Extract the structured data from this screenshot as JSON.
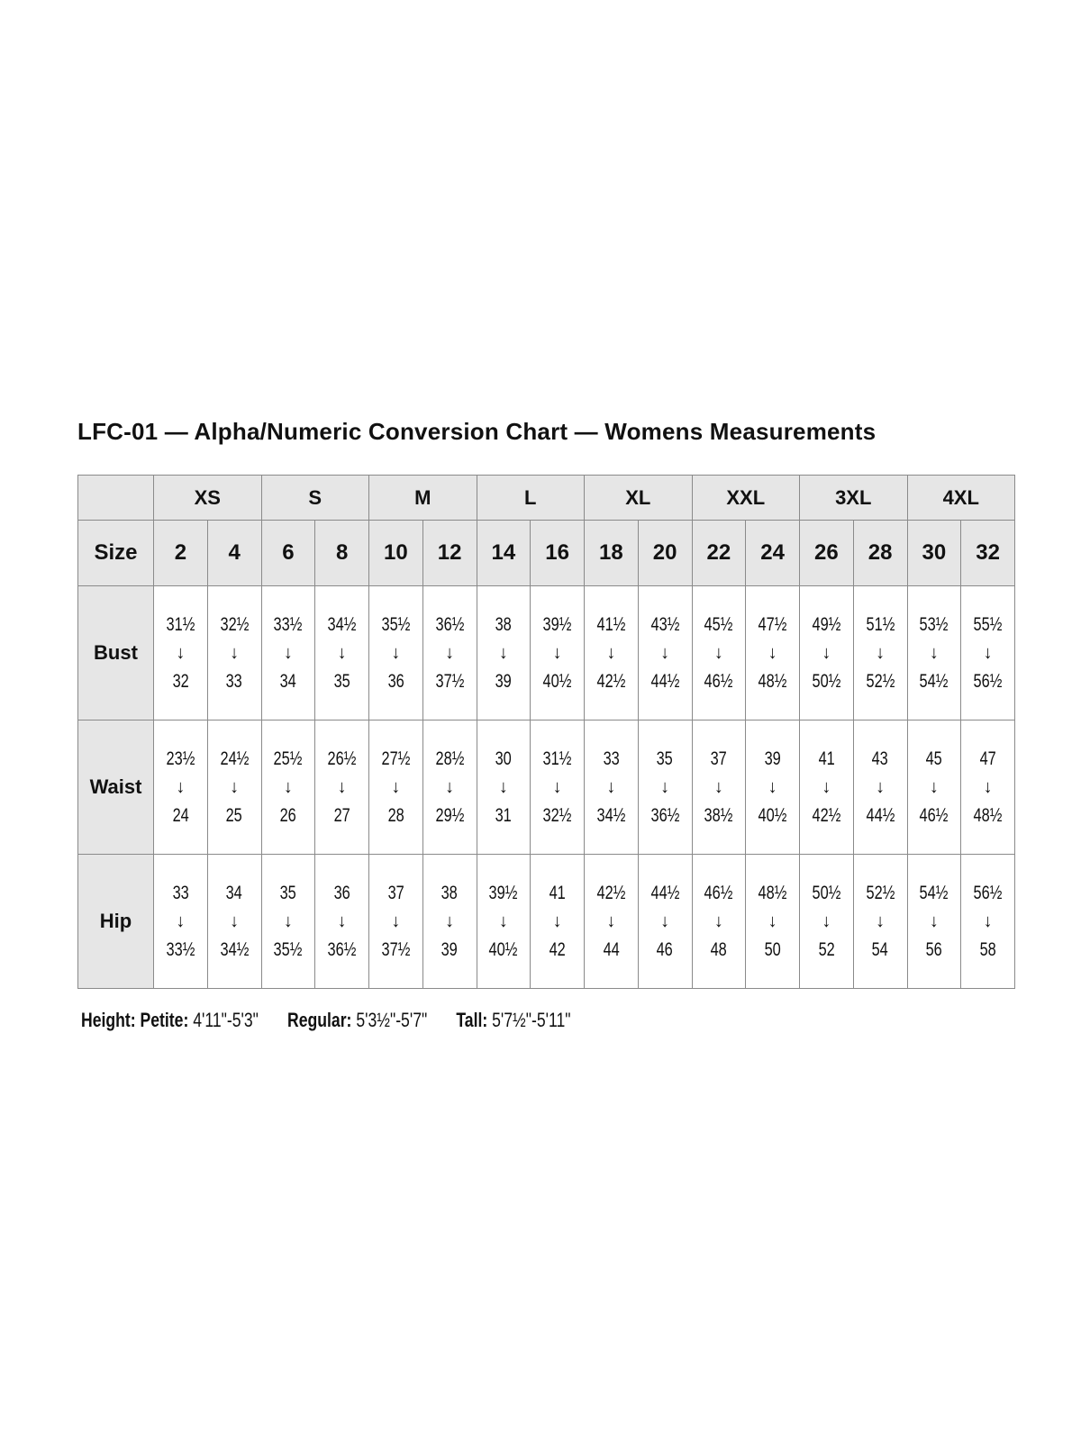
{
  "title": "LFC-01 — Alpha/Numeric Conversion Chart — Womens Measurements",
  "alpha_sizes": [
    "XS",
    "S",
    "M",
    "L",
    "XL",
    "XXL",
    "3XL",
    "4XL"
  ],
  "size_label": "Size",
  "numeric_sizes": [
    "2",
    "4",
    "6",
    "8",
    "10",
    "12",
    "14",
    "16",
    "18",
    "20",
    "22",
    "24",
    "26",
    "28",
    "30",
    "32"
  ],
  "arrow": "↓",
  "rows": [
    {
      "label": "Bust",
      "from": [
        "31½",
        "32½",
        "33½",
        "34½",
        "35½",
        "36½",
        "38",
        "39½",
        "41½",
        "43½",
        "45½",
        "47½",
        "49½",
        "51½",
        "53½",
        "55½"
      ],
      "to": [
        "32",
        "33",
        "34",
        "35",
        "36",
        "37½",
        "39",
        "40½",
        "42½",
        "44½",
        "46½",
        "48½",
        "50½",
        "52½",
        "54½",
        "56½"
      ]
    },
    {
      "label": "Waist",
      "from": [
        "23½",
        "24½",
        "25½",
        "26½",
        "27½",
        "28½",
        "30",
        "31½",
        "33",
        "35",
        "37",
        "39",
        "41",
        "43",
        "45",
        "47"
      ],
      "to": [
        "24",
        "25",
        "26",
        "27",
        "28",
        "29½",
        "31",
        "32½",
        "34½",
        "36½",
        "38½",
        "40½",
        "42½",
        "44½",
        "46½",
        "48½"
      ]
    },
    {
      "label": "Hip",
      "from": [
        "33",
        "34",
        "35",
        "36",
        "37",
        "38",
        "39½",
        "41",
        "42½",
        "44½",
        "46½",
        "48½",
        "50½",
        "52½",
        "54½",
        "56½"
      ],
      "to": [
        "33½",
        "34½",
        "35½",
        "36½",
        "37½",
        "39",
        "40½",
        "42",
        "44",
        "46",
        "48",
        "50",
        "52",
        "54",
        "56",
        "58"
      ]
    }
  ],
  "footer": {
    "height_label": "Height:",
    "petite_label": "Petite:",
    "petite_value": "4'11\"-5'3\"",
    "regular_label": "Regular:",
    "regular_value": "5'3½\"-5'7\"",
    "tall_label": "Tall:",
    "tall_value": "5'7½\"-5'11\""
  },
  "colors": {
    "header_bg": "#e6e6e6",
    "border": "#8a8a8a",
    "text": "#111111"
  }
}
